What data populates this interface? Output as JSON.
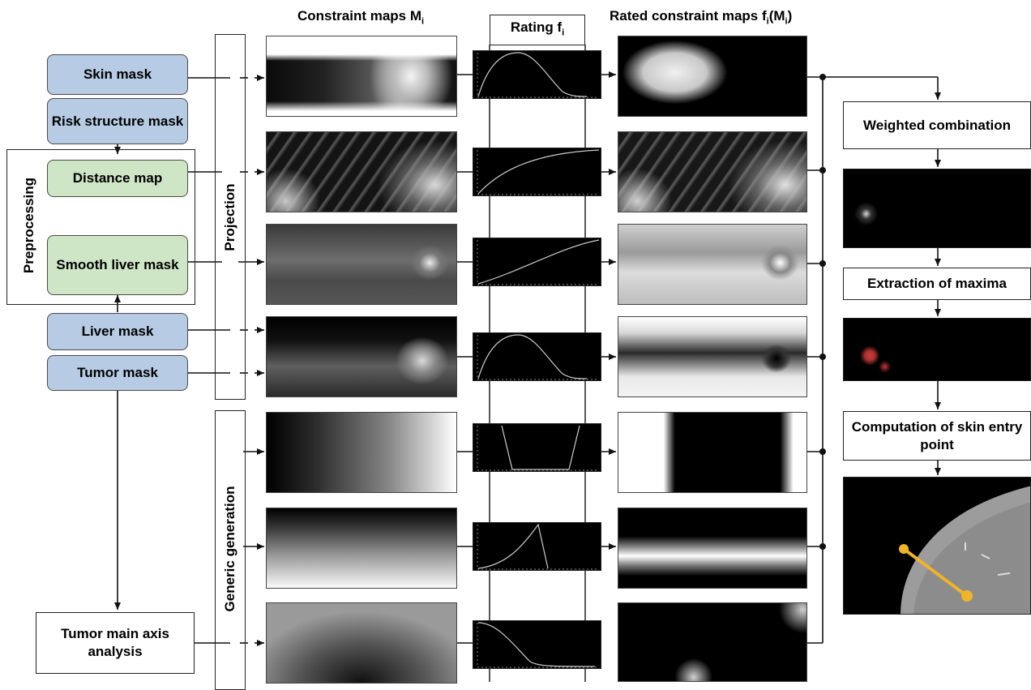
{
  "headers": {
    "constraint_maps": "Constraint maps M",
    "constraint_maps_sub": "i",
    "rating": "Rating f",
    "rating_sub": "i",
    "rated_maps_prefix": "Rated constraint maps f",
    "rated_maps_sub": "i",
    "rated_maps_mid": "(M",
    "rated_maps_sub2": "i",
    "rated_maps_suffix": ")"
  },
  "inputs": {
    "skin_mask": "Skin mask",
    "risk_structure_mask": "Risk structure mask",
    "distance_map": "Distance map",
    "smooth_liver_mask": "Smooth liver mask",
    "liver_mask": "Liver mask",
    "tumor_mask": "Tumor mask",
    "tumor_main_axis": "Tumor main axis analysis"
  },
  "groups": {
    "preprocessing": "Preprocessing",
    "projection": "Projection",
    "generic_generation": "Generic generation"
  },
  "pipeline": {
    "weighted_combination": "Weighted combination",
    "extraction_of_maxima": "Extraction of maxima",
    "computation_of_skin_entry_point": "Computation of skin entry point"
  },
  "colors": {
    "input_blue": "#b7cce4",
    "preprocess_green": "#cfe6c6",
    "needle_orange": "#f0b429",
    "maxima_red": "#d23c3c"
  }
}
